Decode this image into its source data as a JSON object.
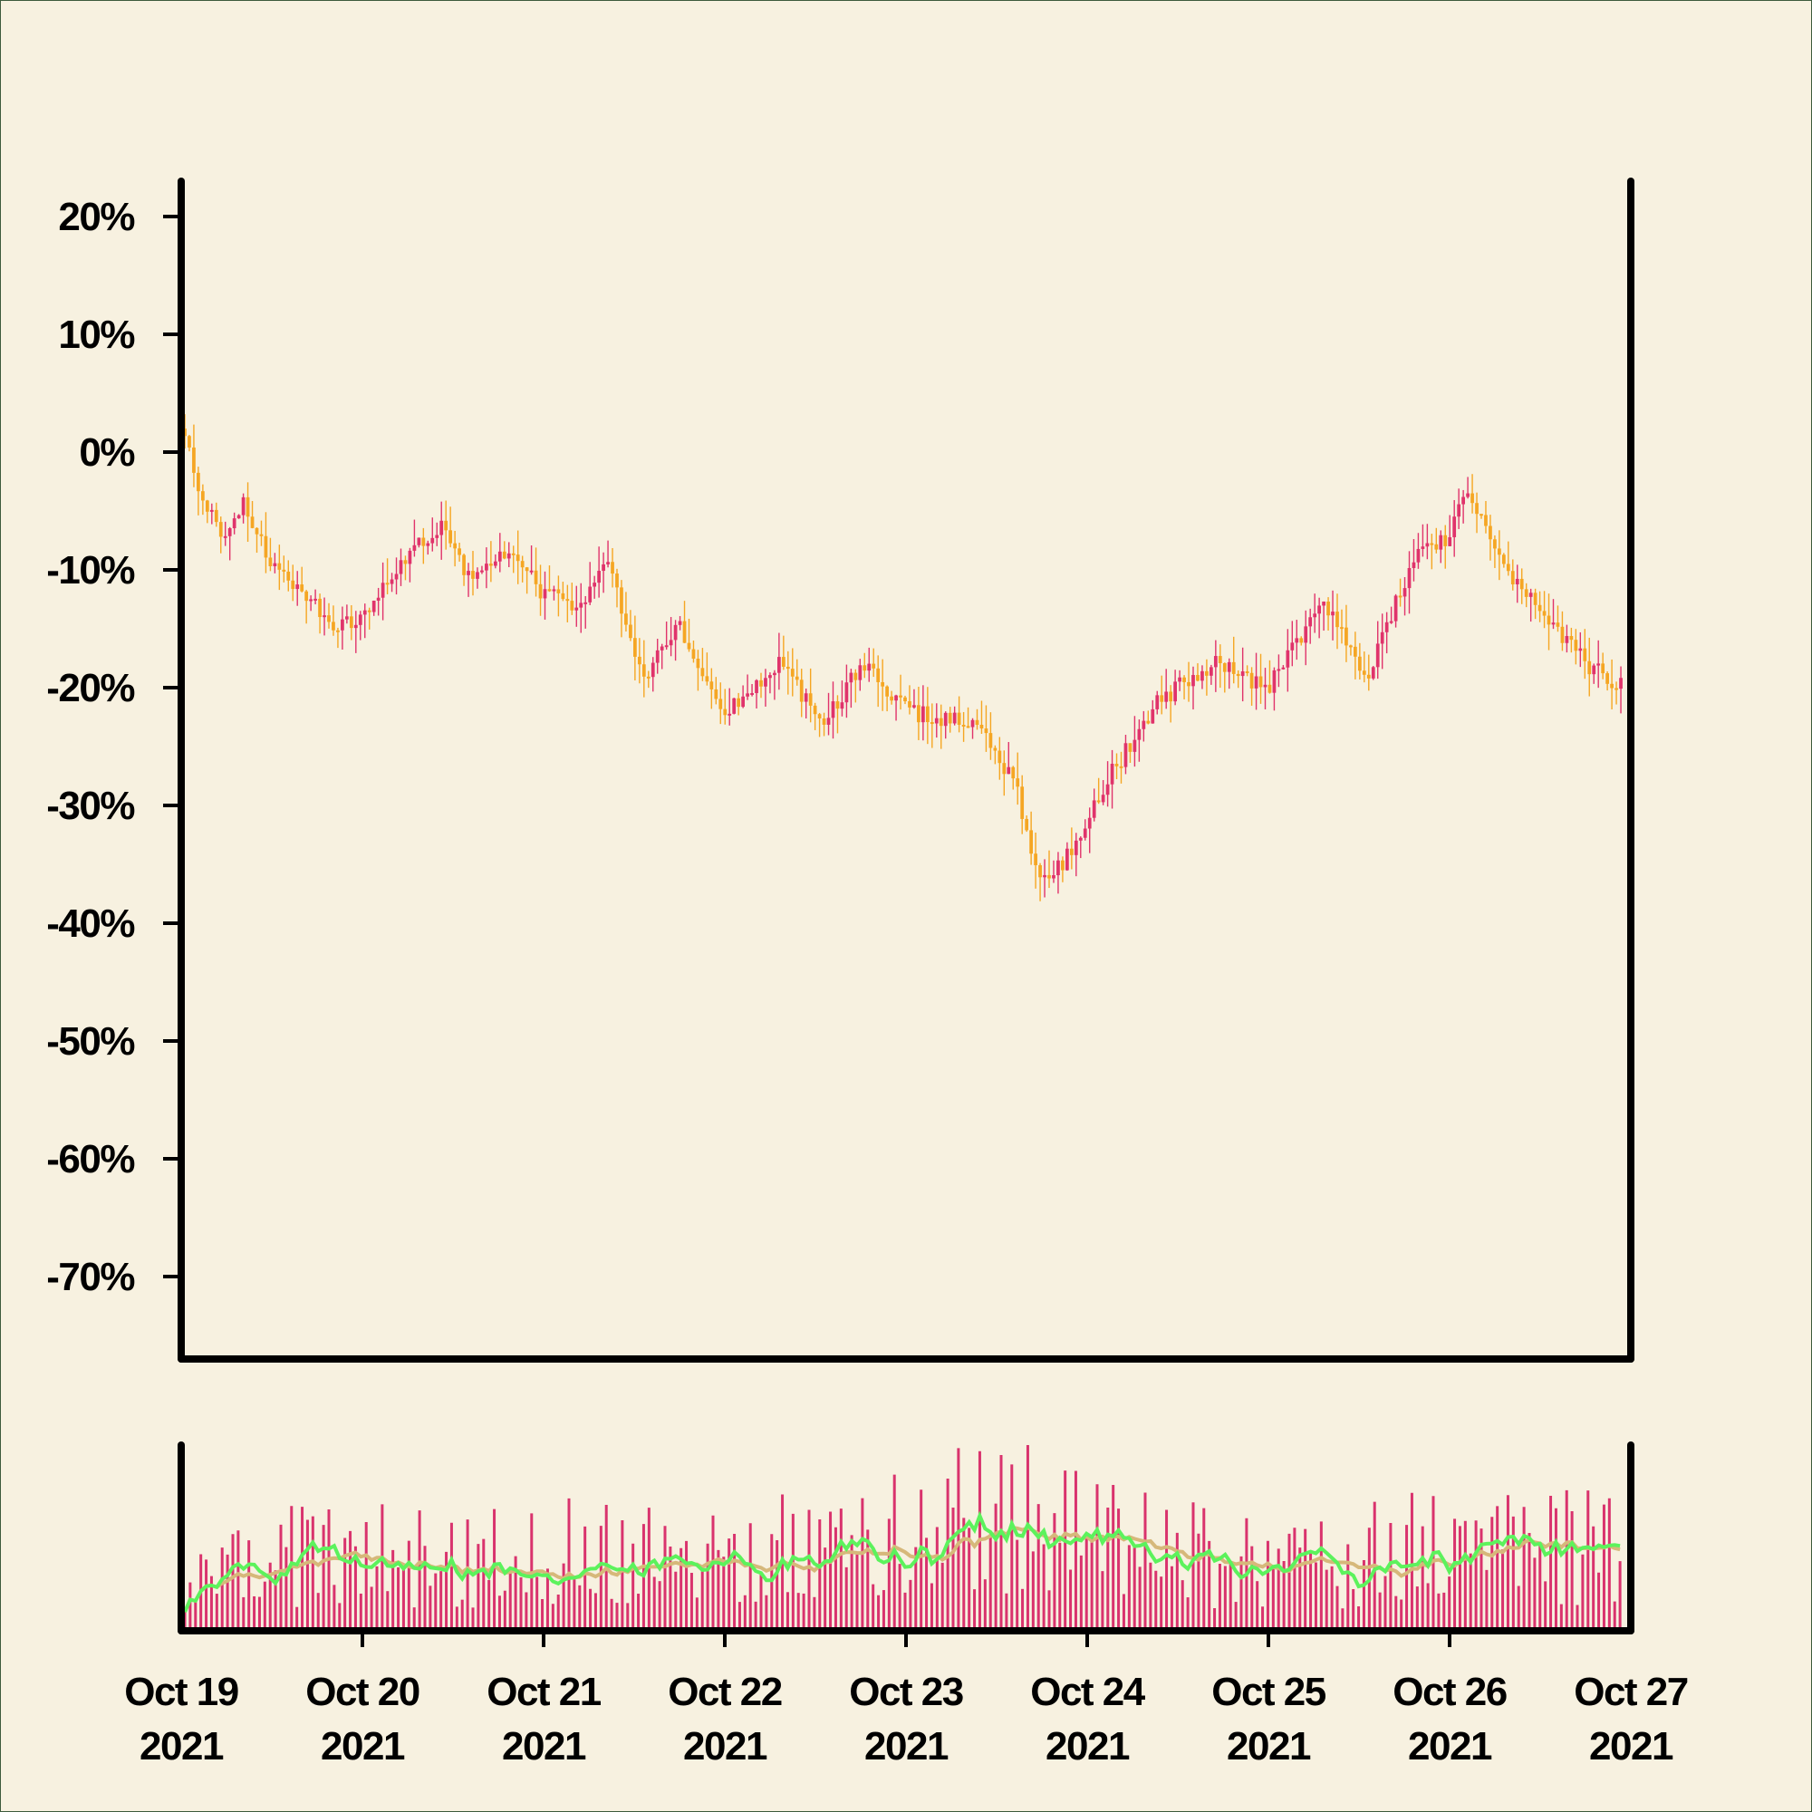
{
  "chart_data": {
    "type": "candlestick",
    "title": "",
    "xlabel": "",
    "ylabel": "",
    "price_panel": {
      "y_ticks": [
        "20%",
        "10%",
        "0%",
        "-10%",
        "-20%",
        "-30%",
        "-40%",
        "-50%",
        "-60%",
        "-70%"
      ],
      "y_tick_values": [
        20,
        10,
        0,
        -10,
        -20,
        -30,
        -40,
        -50,
        -60,
        -70
      ],
      "ylim": [
        -77,
        23
      ],
      "up_color": "#e0336b",
      "down_color": "#f5a623",
      "close_path": [
        {
          "day": 0.0,
          "close": 2
        },
        {
          "day": 0.12,
          "close": -4
        },
        {
          "day": 0.22,
          "close": -7
        },
        {
          "day": 0.35,
          "close": -4
        },
        {
          "day": 0.5,
          "close": -10
        },
        {
          "day": 0.7,
          "close": -12
        },
        {
          "day": 0.85,
          "close": -15
        },
        {
          "day": 1.0,
          "close": -14
        },
        {
          "day": 1.15,
          "close": -11
        },
        {
          "day": 1.3,
          "close": -8
        },
        {
          "day": 1.45,
          "close": -6
        },
        {
          "day": 1.6,
          "close": -11
        },
        {
          "day": 1.8,
          "close": -8
        },
        {
          "day": 2.0,
          "close": -12
        },
        {
          "day": 2.2,
          "close": -13
        },
        {
          "day": 2.35,
          "close": -9
        },
        {
          "day": 2.55,
          "close": -19
        },
        {
          "day": 2.75,
          "close": -15
        },
        {
          "day": 3.0,
          "close": -22
        },
        {
          "day": 3.3,
          "close": -18
        },
        {
          "day": 3.55,
          "close": -23
        },
        {
          "day": 3.75,
          "close": -18
        },
        {
          "day": 4.0,
          "close": -22
        },
        {
          "day": 4.4,
          "close": -23
        },
        {
          "day": 4.6,
          "close": -28
        },
        {
          "day": 4.75,
          "close": -37
        },
        {
          "day": 4.9,
          "close": -34
        },
        {
          "day": 5.1,
          "close": -28
        },
        {
          "day": 5.4,
          "close": -21
        },
        {
          "day": 5.7,
          "close": -18
        },
        {
          "day": 6.0,
          "close": -20
        },
        {
          "day": 6.3,
          "close": -13
        },
        {
          "day": 6.55,
          "close": -19
        },
        {
          "day": 6.8,
          "close": -9
        },
        {
          "day": 7.0,
          "close": -7
        },
        {
          "day": 7.1,
          "close": -3
        },
        {
          "day": 7.3,
          "close": -10
        },
        {
          "day": 7.55,
          "close": -14
        },
        {
          "day": 7.75,
          "close": -18
        },
        {
          "day": 7.95,
          "close": -20
        }
      ]
    },
    "volume_panel": {
      "bar_color": "#d9336d",
      "ma_fast_color": "#5cf25c",
      "ma_slow_color": "#d6b87a",
      "relative_profile": [
        {
          "day": 0.0,
          "level": 0.25
        },
        {
          "day": 0.6,
          "level": 0.5
        },
        {
          "day": 1.5,
          "level": 0.45
        },
        {
          "day": 2.6,
          "level": 0.55
        },
        {
          "day": 3.2,
          "level": 0.5
        },
        {
          "day": 3.8,
          "level": 0.55
        },
        {
          "day": 4.6,
          "level": 0.8
        },
        {
          "day": 5.2,
          "level": 0.55
        },
        {
          "day": 6.0,
          "level": 0.4
        },
        {
          "day": 6.5,
          "level": 0.5
        },
        {
          "day": 7.2,
          "level": 0.55
        },
        {
          "day": 8.0,
          "level": 0.55
        }
      ]
    },
    "x_ticks": [
      {
        "month_day": "Oct 19",
        "year": "2021"
      },
      {
        "month_day": "Oct 20",
        "year": "2021"
      },
      {
        "month_day": "Oct 21",
        "year": "2021"
      },
      {
        "month_day": "Oct 22",
        "year": "2021"
      },
      {
        "month_day": "Oct 23",
        "year": "2021"
      },
      {
        "month_day": "Oct 24",
        "year": "2021"
      },
      {
        "month_day": "Oct 25",
        "year": "2021"
      },
      {
        "month_day": "Oct 26",
        "year": "2021"
      },
      {
        "month_day": "Oct 27",
        "year": "2021"
      }
    ],
    "x_range_days": [
      0,
      8
    ]
  }
}
